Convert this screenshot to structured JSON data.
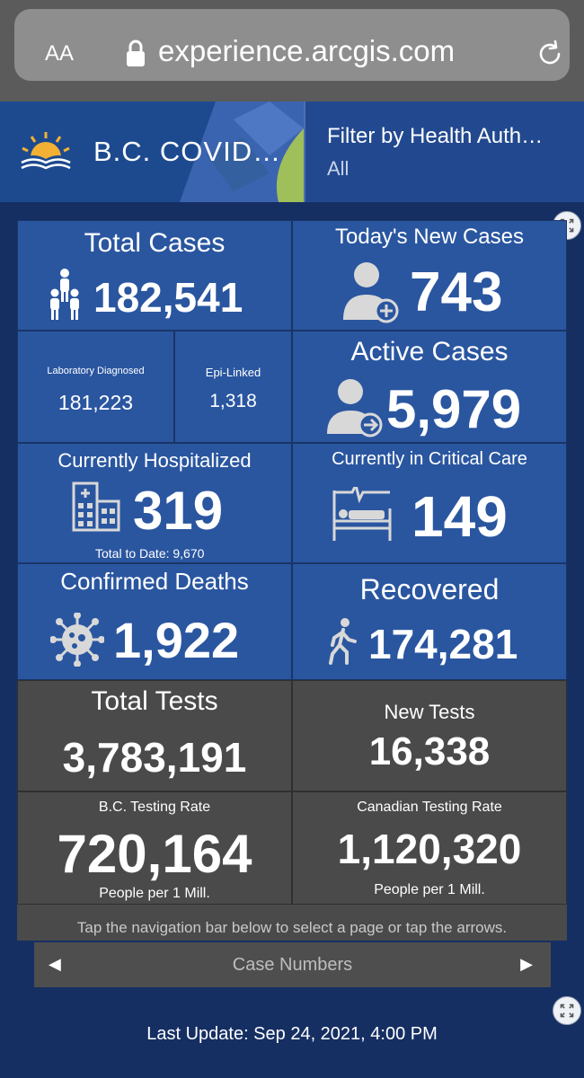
{
  "browser": {
    "text_size_label": "AA",
    "url": "experience.arcgis.com"
  },
  "header": {
    "title": "B.C. COVID…",
    "filter_label": "Filter by Health Auth…",
    "filter_value": "All"
  },
  "tiles": {
    "total_cases": {
      "label": "Total Cases",
      "value": "182,541"
    },
    "new_cases": {
      "label": "Today's New Cases",
      "value": "743"
    },
    "lab_diagnosed": {
      "label": "Laboratory Diagnosed",
      "value": "181,223"
    },
    "epi_linked": {
      "label": "Epi-Linked",
      "value": "1,318"
    },
    "active_cases": {
      "label": "Active Cases",
      "value": "5,979"
    },
    "hospitalized": {
      "label": "Currently Hospitalized",
      "value": "319",
      "sub": "Total to Date: 9,670"
    },
    "critical_care": {
      "label": "Currently in Critical Care",
      "value": "149"
    },
    "deaths": {
      "label": "Confirmed Deaths",
      "value": "1,922"
    },
    "recovered": {
      "label": "Recovered",
      "value": "174,281"
    },
    "total_tests": {
      "label": "Total Tests",
      "value": "3,783,191"
    },
    "new_tests": {
      "label": "New Tests",
      "value": "16,338"
    },
    "bc_rate": {
      "label": "B.C. Testing Rate",
      "value": "720,164",
      "sub": "People per 1 Mill."
    },
    "canada_rate": {
      "label": "Canadian Testing Rate",
      "value": "1,120,320",
      "sub": "People per 1 Mill."
    }
  },
  "footer": {
    "note": "Tap the navigation bar below to select a page or tap the arrows.",
    "nav_label": "Case Numbers",
    "nav_prev": "◀",
    "nav_next": "▶",
    "last_update": "Last Update: Sep 24, 2021, 4:00 PM"
  },
  "icons": {
    "lock": "lock-icon",
    "reload": "reload-icon",
    "logo": "bc-sun-logo",
    "expand": "expand-icon",
    "people": "people-icon",
    "person_add": "person-add-icon",
    "person_arrow": "person-arrow-icon",
    "hospital": "hospital-icon",
    "critical_bed": "hospital-bed-icon",
    "virus": "virus-icon",
    "walking": "walking-person-icon"
  },
  "colors": {
    "page_bg": "#162f63",
    "tile_blue": "#2a56a0",
    "tile_grey": "#4a4a4a",
    "header_blue": "#22498f"
  }
}
